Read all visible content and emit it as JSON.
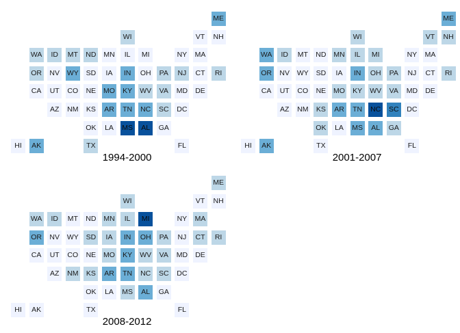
{
  "chart_data": {
    "type": "heatmap",
    "colors": [
      "#eff3ff",
      "#bdd7e7",
      "#6baed6",
      "#3182bd",
      "#08519c"
    ],
    "panels": [
      {
        "title": "1994-2000",
        "states": {
          "ME": 2,
          "WI": 1,
          "VT": 0,
          "NH": 0,
          "WA": 1,
          "ID": 1,
          "MT": 1,
          "ND": 1,
          "MN": 0,
          "IL": 0,
          "MI": 0,
          "NY": 0,
          "MA": 0,
          "OR": 1,
          "NV": 0,
          "WY": 2,
          "SD": 0,
          "IA": 0,
          "IN": 2,
          "OH": 0,
          "PA": 1,
          "NJ": 1,
          "CT": 0,
          "RI": 1,
          "CA": 0,
          "UT": 0,
          "CO": 0,
          "NE": 0,
          "MO": 2,
          "KY": 2,
          "WV": 1,
          "VA": 1,
          "MD": 0,
          "DE": 0,
          "AZ": 0,
          "NM": 0,
          "KS": 0,
          "AR": 2,
          "TN": 2,
          "NC": 2,
          "SC": 1,
          "DC": 0,
          "OK": 0,
          "LA": 0,
          "MS": 4,
          "AL": 4,
          "GA": 0,
          "HI": 0,
          "AK": 2,
          "TX": 1,
          "FL": 0
        }
      },
      {
        "title": "2001-2007",
        "states": {
          "ME": 2,
          "WI": 1,
          "VT": 1,
          "NH": 1,
          "WA": 2,
          "ID": 1,
          "MT": 0,
          "ND": 0,
          "MN": 1,
          "IL": 1,
          "MI": 1,
          "NY": 0,
          "MA": 0,
          "OR": 2,
          "NV": 0,
          "WY": 0,
          "SD": 0,
          "IA": 0,
          "IN": 2,
          "OH": 1,
          "PA": 1,
          "NJ": 0,
          "CT": 0,
          "RI": 1,
          "CA": 0,
          "UT": 0,
          "CO": 0,
          "NE": 0,
          "MO": 1,
          "KY": 1,
          "WV": 1,
          "VA": 1,
          "MD": 0,
          "DE": 0,
          "AZ": 0,
          "NM": 0,
          "KS": 1,
          "AR": 2,
          "TN": 2,
          "NC": 4,
          "SC": 3,
          "DC": 0,
          "OK": 1,
          "LA": 0,
          "MS": 2,
          "AL": 2,
          "GA": 1,
          "HI": 0,
          "AK": 2,
          "TX": 0,
          "FL": 0
        }
      },
      {
        "title": "2008-2012",
        "states": {
          "ME": 1,
          "WI": 1,
          "VT": 0,
          "NH": 0,
          "WA": 1,
          "ID": 1,
          "MT": 0,
          "ND": 0,
          "MN": 1,
          "IL": 1,
          "MI": 4,
          "NY": 0,
          "MA": 1,
          "OR": 2,
          "NV": 0,
          "WY": 0,
          "SD": 1,
          "IA": 1,
          "IN": 2,
          "OH": 2,
          "PA": 1,
          "NJ": 0,
          "CT": 1,
          "RI": 1,
          "CA": 0,
          "UT": 0,
          "CO": 0,
          "NE": 0,
          "MO": 1,
          "KY": 2,
          "WV": 1,
          "VA": 1,
          "MD": 0,
          "DE": 0,
          "AZ": 0,
          "NM": 1,
          "KS": 1,
          "AR": 2,
          "TN": 2,
          "NC": 1,
          "SC": 1,
          "DC": 0,
          "OK": 0,
          "LA": 0,
          "MS": 1,
          "AL": 2,
          "GA": 0,
          "HI": 0,
          "AK": 0,
          "TX": 0,
          "FL": 0
        }
      }
    ]
  }
}
